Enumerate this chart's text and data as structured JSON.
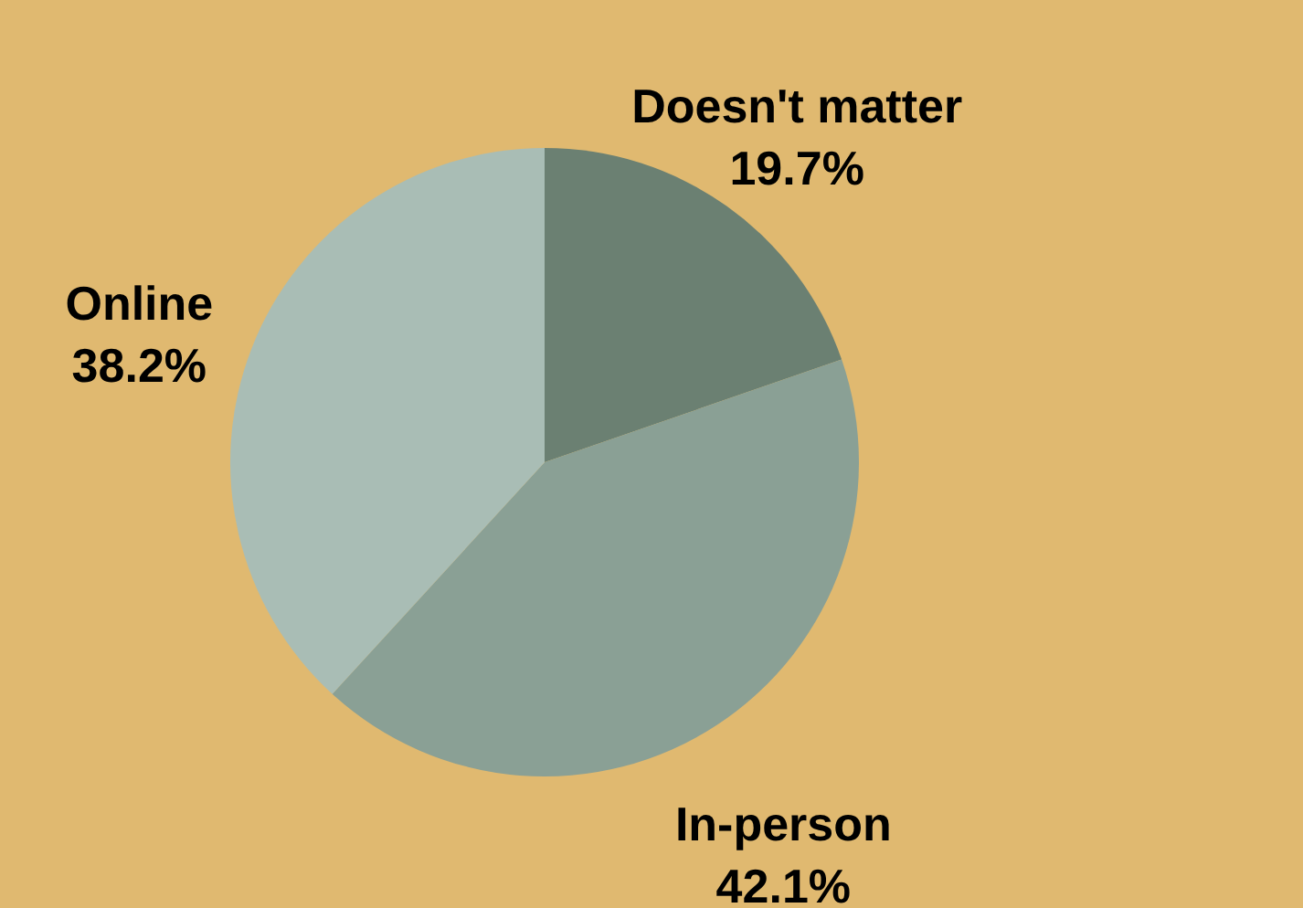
{
  "chart_data": {
    "type": "pie",
    "categories": [
      "Doesn't matter",
      "In-person",
      "Online"
    ],
    "values": [
      19.7,
      42.1,
      38.2
    ],
    "value_labels": [
      "19.7%",
      "42.1%",
      "38.2%"
    ],
    "colors": [
      "#6b8072",
      "#8aa095",
      "#a9bdb5"
    ]
  }
}
